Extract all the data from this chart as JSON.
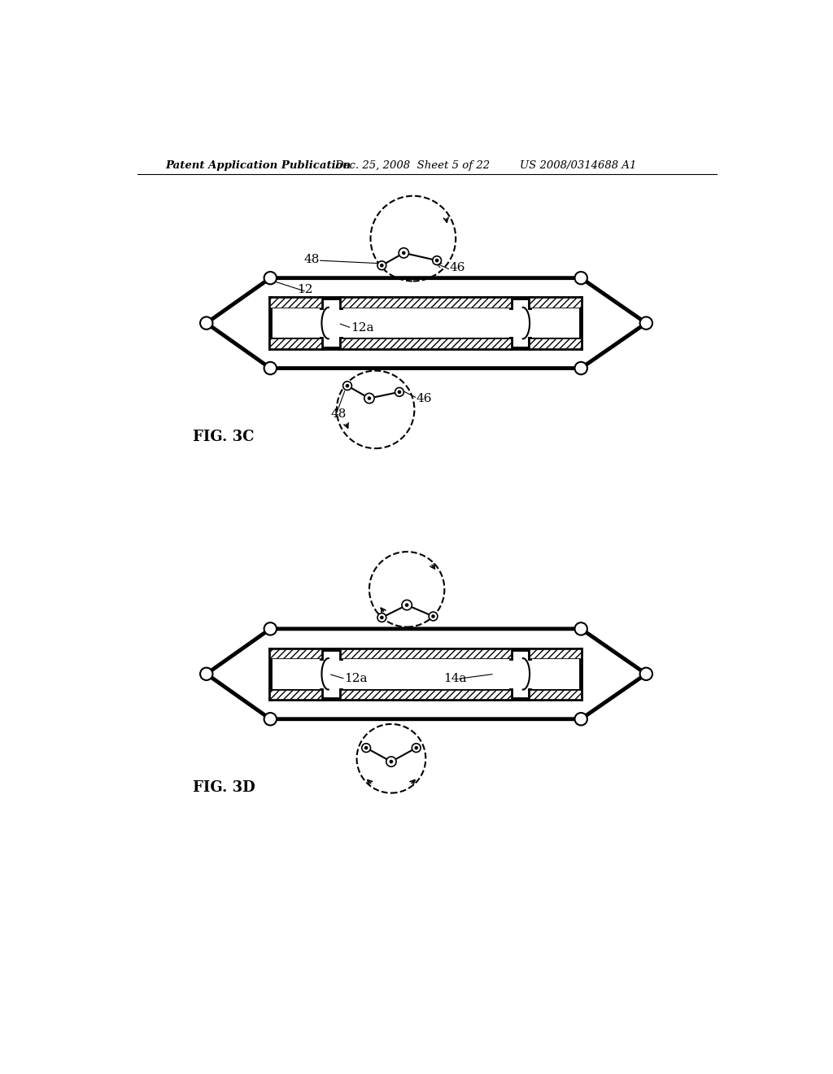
{
  "bg_color": "#ffffff",
  "header_text": "Patent Application Publication",
  "header_date": "Dec. 25, 2008  Sheet 5 of 22",
  "header_patent": "US 2008/0314688 A1",
  "fig3c_label": "FIG. 3C",
  "fig3d_label": "FIG. 3D",
  "label_12": "12",
  "label_12a_3c": "12a",
  "label_12a_3d": "12a",
  "label_14a": "14a",
  "label_46_top": "46",
  "label_46_bot": "46",
  "label_48_top": "48",
  "label_48_bot": "48",
  "lw_thick": 3.5,
  "lw_thin": 1.5,
  "lw_mid": 2.0
}
